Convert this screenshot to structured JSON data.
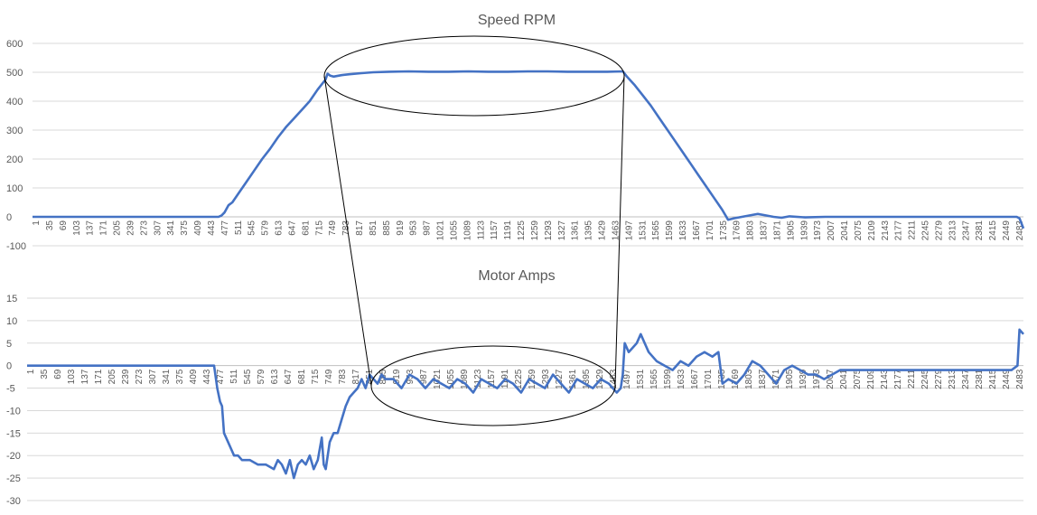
{
  "chart_data": [
    {
      "type": "line",
      "title": "Speed RPM",
      "xlabel": "",
      "ylabel": "",
      "ylim": [
        -100,
        600
      ],
      "yticks": [
        600,
        500,
        400,
        300,
        200,
        100,
        0,
        -100
      ],
      "xlim": [
        1,
        2500
      ],
      "xtick_labels": [
        "1",
        "35",
        "69",
        "103",
        "137",
        "171",
        "205",
        "239",
        "273",
        "307",
        "341",
        "375",
        "409",
        "443",
        "477",
        "511",
        "545",
        "579",
        "613",
        "647",
        "681",
        "715",
        "749",
        "783",
        "817",
        "851",
        "885",
        "919",
        "953",
        "987",
        "1021",
        "1055",
        "1089",
        "1123",
        "1157",
        "1191",
        "1225",
        "1259",
        "1293",
        "1327",
        "1361",
        "1395",
        "1429",
        "1463",
        "1497",
        "1531",
        "1565",
        "1599",
        "1633",
        "1667",
        "1701",
        "1735",
        "1769",
        "1803",
        "1837",
        "1871",
        "1905",
        "1939",
        "1973",
        "2007",
        "2041",
        "2075",
        "2109",
        "2143",
        "2177",
        "2211",
        "2245",
        "2279",
        "2313",
        "2347",
        "2381",
        "2415",
        "2449",
        "2483"
      ],
      "grid": true,
      "legend": "none",
      "color": "#4472C4",
      "series": [
        {
          "x": [
            1,
            100,
            200,
            300,
            400,
            470,
            478,
            485,
            495,
            505,
            520,
            540,
            560,
            580,
            600,
            620,
            640,
            660,
            680,
            700,
            720,
            740,
            745,
            752,
            760,
            780,
            800,
            830,
            860,
            900,
            950,
            1000,
            1050,
            1100,
            1150,
            1200,
            1250,
            1300,
            1350,
            1400,
            1450,
            1490,
            1500,
            1520,
            1540,
            1560,
            1580,
            1600,
            1620,
            1640,
            1660,
            1680,
            1700,
            1720,
            1740,
            1755,
            1770,
            1790,
            1810,
            1830,
            1850,
            1870,
            1890,
            1910,
            1950,
            2000,
            2050,
            2100,
            2150,
            2200,
            2250,
            2300,
            2350,
            2400,
            2450,
            2483,
            2490,
            2500
          ],
          "y": [
            0,
            0,
            0,
            0,
            0,
            0,
            5,
            15,
            40,
            50,
            80,
            120,
            160,
            200,
            235,
            275,
            310,
            340,
            370,
            400,
            440,
            475,
            495,
            488,
            485,
            490,
            493,
            497,
            500,
            502,
            503,
            502,
            502,
            503,
            502,
            502,
            503,
            503,
            502,
            502,
            502,
            503,
            485,
            455,
            420,
            385,
            345,
            305,
            265,
            225,
            185,
            145,
            105,
            65,
            25,
            -10,
            -5,
            0,
            5,
            10,
            5,
            0,
            -3,
            2,
            -2,
            0,
            0,
            0,
            0,
            0,
            0,
            0,
            0,
            0,
            0,
            0,
            -5,
            -40
          ]
        }
      ]
    },
    {
      "type": "line",
      "title": "Motor Amps",
      "xlabel": "",
      "ylabel": "",
      "ylim": [
        -30,
        15
      ],
      "yticks": [
        15,
        10,
        5,
        0,
        -5,
        -10,
        -15,
        -20,
        -25,
        -30
      ],
      "xlim": [
        1,
        2500
      ],
      "xtick_labels": [
        "1",
        "35",
        "69",
        "103",
        "137",
        "171",
        "205",
        "239",
        "273",
        "307",
        "341",
        "375",
        "409",
        "443",
        "477",
        "511",
        "545",
        "579",
        "613",
        "647",
        "681",
        "715",
        "749",
        "783",
        "817",
        "851",
        "885",
        "919",
        "953",
        "987",
        "1021",
        "1055",
        "1089",
        "1123",
        "1157",
        "1191",
        "1225",
        "1259",
        "1293",
        "1327",
        "1361",
        "1395",
        "1429",
        "1463",
        "1497",
        "1531",
        "1565",
        "1599",
        "1633",
        "1667",
        "1701",
        "1735",
        "1769",
        "1803",
        "1837",
        "1871",
        "1905",
        "1939",
        "1973",
        "2007",
        "2041",
        "2075",
        "2109",
        "2143",
        "2177",
        "2211",
        "2245",
        "2279",
        "2313",
        "2347",
        "2381",
        "2415",
        "2449",
        "2483"
      ],
      "grid": true,
      "legend": "none",
      "color": "#4472C4",
      "series": [
        {
          "x": [
            1,
            100,
            200,
            300,
            400,
            470,
            478,
            485,
            490,
            495,
            505,
            520,
            530,
            540,
            560,
            580,
            600,
            620,
            630,
            640,
            650,
            660,
            670,
            680,
            690,
            700,
            710,
            720,
            730,
            740,
            745,
            750,
            760,
            770,
            780,
            790,
            800,
            810,
            820,
            830,
            840,
            850,
            860,
            870,
            880,
            890,
            900,
            920,
            940,
            960,
            980,
            1000,
            1020,
            1040,
            1060,
            1080,
            1100,
            1120,
            1140,
            1160,
            1180,
            1200,
            1220,
            1240,
            1260,
            1280,
            1300,
            1320,
            1340,
            1360,
            1380,
            1400,
            1420,
            1440,
            1460,
            1480,
            1490,
            1495,
            1500,
            1510,
            1520,
            1530,
            1540,
            1550,
            1560,
            1580,
            1600,
            1620,
            1640,
            1660,
            1680,
            1700,
            1720,
            1735,
            1745,
            1760,
            1780,
            1800,
            1820,
            1840,
            1860,
            1870,
            1880,
            1900,
            1920,
            1940,
            1960,
            1980,
            2000,
            2020,
            2040,
            2080,
            2120,
            2160,
            2200,
            2240,
            2280,
            2320,
            2360,
            2400,
            2440,
            2470,
            2485,
            2490,
            2500
          ],
          "y": [
            0,
            0,
            0,
            0,
            0,
            0,
            -5,
            -8,
            -9,
            -15,
            -17,
            -20,
            -20,
            -21,
            -21,
            -22,
            -22,
            -23,
            -21,
            -22,
            -24,
            -21,
            -25,
            -22,
            -21,
            -22,
            -20,
            -23,
            -21,
            -16,
            -22,
            -23,
            -17,
            -15,
            -15,
            -12,
            -9,
            -7,
            -6,
            -5,
            -3,
            -5,
            -2,
            -3,
            -4,
            -2,
            -3,
            -3,
            -5,
            -2,
            -3,
            -5,
            -3,
            -4,
            -5,
            -3,
            -4,
            -6,
            -3,
            -4,
            -5,
            -3,
            -4,
            -6,
            -3,
            -4,
            -5,
            -2,
            -4,
            -6,
            -3,
            -4,
            -5,
            -3,
            -4,
            -6,
            -5,
            -2,
            5,
            3,
            4,
            5,
            7,
            5,
            3,
            1,
            0,
            -1,
            1,
            0,
            2,
            3,
            2,
            3,
            -4,
            -3,
            -4,
            -2,
            1,
            0,
            -2,
            -3,
            -4,
            -1,
            0,
            -1,
            -2,
            -2,
            -3,
            -2,
            -1,
            -1,
            -1,
            -1,
            -1,
            -1,
            -1,
            -1,
            -1,
            -1,
            -1,
            -1,
            0,
            8,
            7
          ]
        }
      ]
    }
  ]
}
